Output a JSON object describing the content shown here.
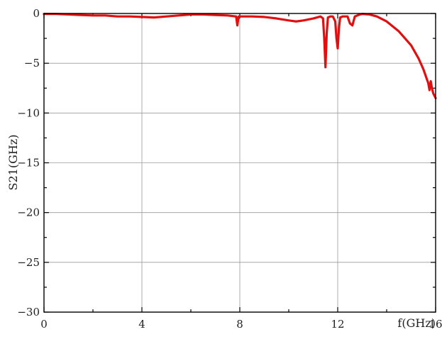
{
  "chart_data": {
    "type": "line",
    "title": "",
    "xlabel": "f(GHz)",
    "ylabel": "S21(GHz)",
    "xlim": [
      0,
      16
    ],
    "ylim": [
      -30,
      0
    ],
    "x_ticks": [
      0,
      4,
      8,
      12,
      16
    ],
    "y_ticks": [
      0,
      -5,
      -10,
      -15,
      -20,
      -25,
      -30
    ],
    "x_tick_labels": [
      "0",
      "4",
      "8",
      "12",
      "16"
    ],
    "y_tick_labels": [
      "0",
      "−5",
      "−10",
      "−15",
      "−20",
      "−25",
      "−30"
    ],
    "grid": true,
    "series": [
      {
        "color": "#e01010",
        "x": [
          0,
          0.5,
          1.0,
          1.5,
          2.0,
          2.5,
          3.0,
          3.5,
          4.0,
          4.5,
          5.0,
          5.5,
          6.0,
          6.5,
          7.0,
          7.5,
          7.85,
          7.9,
          7.95,
          8.0,
          8.5,
          9.0,
          9.5,
          10.0,
          10.3,
          10.6,
          11.0,
          11.3,
          11.4,
          11.45,
          11.5,
          11.55,
          11.6,
          11.7,
          11.8,
          11.9,
          11.95,
          12.0,
          12.05,
          12.1,
          12.2,
          12.4,
          12.5,
          12.6,
          12.7,
          12.9,
          13.0,
          13.3,
          13.6,
          14.0,
          14.5,
          15.0,
          15.3,
          15.5,
          15.6,
          15.7,
          15.75,
          15.8,
          15.85,
          15.9,
          16.0
        ],
        "y": [
          -0.05,
          -0.05,
          -0.1,
          -0.15,
          -0.2,
          -0.2,
          -0.3,
          -0.3,
          -0.35,
          -0.4,
          -0.3,
          -0.2,
          -0.1,
          -0.1,
          -0.15,
          -0.2,
          -0.3,
          -1.2,
          -0.3,
          -0.3,
          -0.3,
          -0.35,
          -0.5,
          -0.7,
          -0.8,
          -0.7,
          -0.5,
          -0.3,
          -0.5,
          -2.5,
          -5.4,
          -2.0,
          -0.4,
          -0.3,
          -0.3,
          -0.8,
          -2.5,
          -3.5,
          -1.5,
          -0.4,
          -0.3,
          -0.3,
          -1.0,
          -1.2,
          -0.3,
          -0.1,
          -0.05,
          -0.1,
          -0.3,
          -0.8,
          -1.8,
          -3.2,
          -4.5,
          -5.6,
          -6.3,
          -7.0,
          -7.7,
          -6.8,
          -7.5,
          -8.0,
          -8.5
        ]
      }
    ]
  }
}
